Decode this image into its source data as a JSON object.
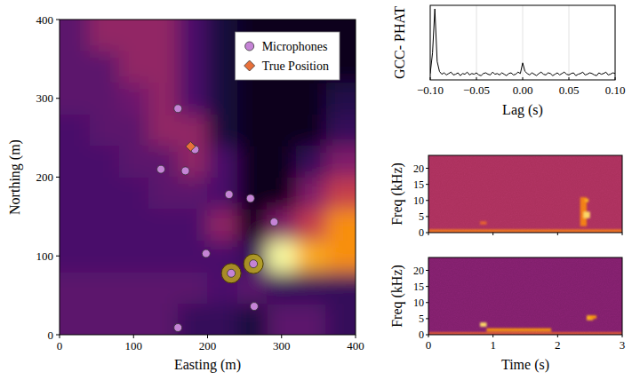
{
  "chart_data": [
    {
      "type": "scatter",
      "xlabel": "Easting (m)",
      "ylabel": "Northing (m)",
      "xlim": [
        0,
        400
      ],
      "ylim": [
        0,
        400
      ],
      "xticks": [
        0,
        100,
        200,
        300,
        400
      ],
      "yticks": [
        0,
        100,
        200,
        300,
        400
      ],
      "legend": "upper right",
      "heatmap": {
        "x": [
          20,
          60,
          100,
          140,
          180,
          220,
          260,
          300,
          340,
          380
        ],
        "y": [
          20,
          60,
          100,
          140,
          180,
          220,
          260,
          300,
          340,
          380
        ],
        "values": [
          [
            0.3,
            0.3,
            0.3,
            0.3,
            0.2,
            0.2,
            0.12,
            0.3,
            0.3,
            0.2
          ],
          [
            0.3,
            0.3,
            0.3,
            0.3,
            0.3,
            0.25,
            0.3,
            0.2,
            0.2,
            0.2
          ],
          [
            0.25,
            0.25,
            0.25,
            0.25,
            0.25,
            0.25,
            0.2,
            1.0,
            0.9,
            0.85
          ],
          [
            0.25,
            0.25,
            0.25,
            0.25,
            0.25,
            0.45,
            0.05,
            0.4,
            0.6,
            0.85
          ],
          [
            0.25,
            0.25,
            0.25,
            0.3,
            0.3,
            0.25,
            0.05,
            0.05,
            0.4,
            0.6
          ],
          [
            0.25,
            0.25,
            0.3,
            0.3,
            0.45,
            0.25,
            0.05,
            0.05,
            0.2,
            0.4
          ],
          [
            0.25,
            0.3,
            0.3,
            0.45,
            0.45,
            0.12,
            0.05,
            0.05,
            0.05,
            0.2
          ],
          [
            0.3,
            0.3,
            0.35,
            0.45,
            0.25,
            0.12,
            0.05,
            0.05,
            0.05,
            0.15
          ],
          [
            0.3,
            0.3,
            0.45,
            0.45,
            0.25,
            0.12,
            0.05,
            0.05,
            0.05,
            0.05
          ],
          [
            0.3,
            0.45,
            0.45,
            0.45,
            0.25,
            0.12,
            0.05,
            0.05,
            0.05,
            0.05
          ]
        ],
        "value_range": [
          0,
          1
        ]
      },
      "pair": [
        8,
        9
      ],
      "series": [
        {
          "name": "Microphones",
          "color": "#c583d6",
          "marker": "circle",
          "x": [
            160,
            183,
            137,
            170,
            229,
            258,
            290,
            198,
            232,
            262,
            263,
            160
          ],
          "values": [
            287,
            235,
            210,
            208,
            178,
            173,
            143,
            103,
            78,
            90,
            36,
            9
          ]
        },
        {
          "name": "True Position",
          "color": "#e8703a",
          "marker": "diamond",
          "x": [
            177
          ],
          "values": [
            239
          ]
        }
      ]
    },
    {
      "type": "line",
      "ylabel": "GCC- PHAT",
      "xlabel": "Lag (s)",
      "xlim": [
        -0.1,
        0.1
      ],
      "ylim": [
        0,
        1.05
      ],
      "xticks": [
        {
          "value": -0.1,
          "label": "−0.10"
        },
        {
          "value": -0.05,
          "label": "−0.05"
        },
        {
          "value": 0,
          "label": "0.00"
        },
        {
          "value": 0.05,
          "label": "0.05"
        },
        {
          "value": 0.1,
          "label": "0.10"
        }
      ],
      "tick_labels": "x",
      "grid": true,
      "color": "#000000",
      "x": [
        -0.1,
        -0.0975,
        -0.095,
        -0.0925,
        -0.09,
        -0.0875,
        -0.085,
        -0.0825,
        -0.08,
        -0.0775,
        -0.075,
        -0.0725,
        -0.07,
        -0.0675,
        -0.065,
        -0.0625,
        -0.06,
        -0.0575,
        -0.055,
        -0.0525,
        -0.05,
        -0.0475,
        -0.045,
        -0.0425,
        -0.04,
        -0.0375,
        -0.035,
        -0.0325,
        -0.03,
        -0.0275,
        -0.025,
        -0.0225,
        -0.02,
        -0.0175,
        -0.015,
        -0.0125,
        -0.01,
        -0.0075,
        -0.005,
        -0.0025,
        0,
        0.0025,
        0.005,
        0.0075,
        0.01,
        0.0125,
        0.015,
        0.0175,
        0.02,
        0.0225,
        0.025,
        0.0275,
        0.03,
        0.0325,
        0.035,
        0.0375,
        0.04,
        0.0425,
        0.045,
        0.0475,
        0.05,
        0.0525,
        0.055,
        0.0575,
        0.06,
        0.0625,
        0.065,
        0.0675,
        0.07,
        0.0725,
        0.075,
        0.0775,
        0.08,
        0.0825,
        0.085,
        0.0875,
        0.09,
        0.0925,
        0.095,
        0.0975,
        0.1
      ],
      "values": [
        0.09,
        0.38,
        1.0,
        0.26,
        0.12,
        0.08,
        0.1,
        0.07,
        0.09,
        0.11,
        0.07,
        0.08,
        0.1,
        0.06,
        0.09,
        0.08,
        0.11,
        0.07,
        0.09,
        0.08,
        0.1,
        0.07,
        0.06,
        0.09,
        0.1,
        0.08,
        0.07,
        0.11,
        0.08,
        0.09,
        0.07,
        0.1,
        0.08,
        0.06,
        0.09,
        0.1,
        0.07,
        0.08,
        0.11,
        0.09,
        0.24,
        0.12,
        0.09,
        0.07,
        0.1,
        0.08,
        0.06,
        0.09,
        0.11,
        0.08,
        0.07,
        0.1,
        0.09,
        0.06,
        0.08,
        0.1,
        0.07,
        0.09,
        0.11,
        0.08,
        0.07,
        0.09,
        0.1,
        0.06,
        0.08,
        0.09,
        0.11,
        0.07,
        0.08,
        0.1,
        0.09,
        0.07,
        0.06,
        0.1,
        0.08,
        0.09,
        0.11,
        0.07,
        0.08,
        0.1,
        0.09
      ]
    },
    {
      "type": "spectrogram",
      "ylabel": "Freq (kHz)",
      "xlim": [
        0,
        3
      ],
      "ylim": [
        0,
        24
      ],
      "xticks": [
        0,
        1,
        2,
        3
      ],
      "yticks": [
        0,
        5,
        10,
        15,
        20
      ],
      "tick_labels": "y",
      "value_range": [
        0,
        1
      ],
      "background": 0.52,
      "features": [
        {
          "t": [
            0,
            3
          ],
          "f": [
            0,
            1
          ],
          "value": 0.78
        },
        {
          "t": [
            0.8,
            0.9
          ],
          "f": [
            2.5,
            3.5
          ],
          "value": 0.72
        },
        {
          "t": [
            2.35,
            2.45
          ],
          "f": [
            2,
            11
          ],
          "value": 0.8
        },
        {
          "t": [
            2.4,
            2.5
          ],
          "f": [
            4.5,
            6.5
          ],
          "value": 0.95
        },
        {
          "t": [
            2.42,
            2.48
          ],
          "f": [
            9.5,
            10.5
          ],
          "value": 0.9
        }
      ]
    },
    {
      "type": "spectrogram",
      "ylabel": "Freq (kHz)",
      "xlabel": "Time (s)",
      "xlim": [
        0,
        3
      ],
      "ylim": [
        0,
        24
      ],
      "xticks": [
        0,
        1,
        2,
        3
      ],
      "yticks": [
        0,
        5,
        10,
        15,
        20
      ],
      "value_range": [
        0,
        1
      ],
      "background": 0.4,
      "features": [
        {
          "t": [
            0,
            3
          ],
          "f": [
            0,
            0.8
          ],
          "value": 0.7
        },
        {
          "t": [
            0.8,
            0.9
          ],
          "f": [
            2.5,
            3.8
          ],
          "value": 0.95
        },
        {
          "t": [
            0.9,
            1.9
          ],
          "f": [
            1,
            2
          ],
          "value": 0.85
        },
        {
          "t": [
            2.45,
            2.55
          ],
          "f": [
            4.5,
            6
          ],
          "value": 0.9
        },
        {
          "t": [
            2.5,
            2.6
          ],
          "f": [
            5,
            6
          ],
          "value": 0.85
        }
      ]
    }
  ]
}
